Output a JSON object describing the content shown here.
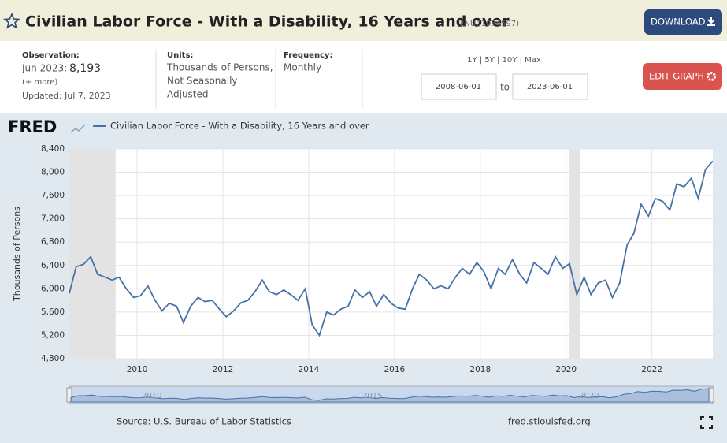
{
  "header": {
    "title": "Civilian Labor Force - With a Disability, 16 Years and over",
    "series_id": "(LNU01074597)",
    "download": "DOWNLOAD"
  },
  "info": {
    "observation_label": "Observation:",
    "observation_date": "Jun 2023:",
    "observation_value": "8,193",
    "more": "(+ more)",
    "updated": "Updated: Jul 7, 2023",
    "units_label": "Units:",
    "units": [
      "Thousands of Persons,",
      "Not Seasonally",
      "Adjusted"
    ],
    "frequency_label": "Frequency:",
    "frequency": "Monthly",
    "ranges": "1Y | 5Y | 10Y | Max",
    "start_date": "2008-06-01",
    "to": "to",
    "end_date": "2023-06-01",
    "edit_graph": "EDIT GRAPH"
  },
  "chart_data": {
    "type": "line",
    "logo": "FRED",
    "y_label": "Thousands of Persons",
    "x": [
      2008.42,
      2008.58,
      2008.75,
      2008.92,
      2009.08,
      2009.25,
      2009.42,
      2009.58,
      2009.75,
      2009.92,
      2010.08,
      2010.25,
      2010.42,
      2010.58,
      2010.75,
      2010.92,
      2011.08,
      2011.25,
      2011.42,
      2011.58,
      2011.75,
      2011.92,
      2012.08,
      2012.25,
      2012.42,
      2012.58,
      2012.75,
      2012.92,
      2013.08,
      2013.25,
      2013.42,
      2013.58,
      2013.75,
      2013.92,
      2014.08,
      2014.25,
      2014.42,
      2014.58,
      2014.75,
      2014.92,
      2015.08,
      2015.25,
      2015.42,
      2015.58,
      2015.75,
      2015.92,
      2016.08,
      2016.25,
      2016.42,
      2016.58,
      2016.75,
      2016.92,
      2017.08,
      2017.25,
      2017.42,
      2017.58,
      2017.75,
      2017.92,
      2018.08,
      2018.25,
      2018.42,
      2018.58,
      2018.75,
      2018.92,
      2019.08,
      2019.25,
      2019.42,
      2019.58,
      2019.75,
      2019.92,
      2020.08,
      2020.25,
      2020.42,
      2020.58,
      2020.75,
      2020.92,
      2021.08,
      2021.25,
      2021.42,
      2021.58,
      2021.75,
      2021.92,
      2022.08,
      2022.25,
      2022.42,
      2022.58,
      2022.75,
      2022.92,
      2023.08,
      2023.25,
      2023.42
    ],
    "series": [
      {
        "name": "Civilian Labor Force - With a Disability, 16 Years and over",
        "color": "#4572a7",
        "values": [
          5920,
          6380,
          6420,
          6550,
          6250,
          6200,
          6150,
          6200,
          6000,
          5850,
          5880,
          6050,
          5800,
          5620,
          5750,
          5700,
          5420,
          5700,
          5850,
          5780,
          5800,
          5650,
          5520,
          5620,
          5760,
          5800,
          5950,
          6150,
          5950,
          5900,
          5980,
          5900,
          5800,
          6000,
          5380,
          5200,
          5600,
          5550,
          5650,
          5700,
          5980,
          5850,
          5950,
          5700,
          5900,
          5750,
          5670,
          5650,
          6000,
          6250,
          6150,
          6000,
          6050,
          6000,
          6200,
          6350,
          6250,
          6450,
          6300,
          6000,
          6350,
          6250,
          6500,
          6250,
          6100,
          6450,
          6350,
          6250,
          6550,
          6350,
          6430,
          5900,
          6200,
          5900,
          6100,
          6150,
          5850,
          6100,
          6750,
          6950,
          7450,
          7250,
          7550,
          7500,
          7350,
          7800,
          7750,
          7900,
          7550,
          8050,
          8193
        ]
      }
    ],
    "xlim": [
      2008.42,
      2023.42
    ],
    "xticks": [
      2010,
      2012,
      2014,
      2016,
      2018,
      2020,
      2022
    ],
    "ylim": [
      4800,
      8400
    ],
    "yticks": [
      {
        "value": 4800,
        "label": "4,800"
      },
      {
        "value": 5200,
        "label": "5,200"
      },
      {
        "value": 5600,
        "label": "5,600"
      },
      {
        "value": 6000,
        "label": "6,000"
      },
      {
        "value": 6400,
        "label": "6,400"
      },
      {
        "value": 6800,
        "label": "6,800"
      },
      {
        "value": 7200,
        "label": "7,200"
      },
      {
        "value": 7600,
        "label": "7,600"
      },
      {
        "value": 8000,
        "label": "8,000"
      },
      {
        "value": 8400,
        "label": "8,400"
      }
    ],
    "grid": true,
    "shaded_periods": [
      {
        "start": 2007.92,
        "end": 2009.5
      },
      {
        "start": 2020.08,
        "end": 2020.33
      }
    ],
    "nav_labels": [
      "2010",
      "2015",
      "2020"
    ]
  },
  "footer": {
    "source": "Source: U.S. Bureau of Labor Statistics",
    "url": "fred.stlouisfed.org"
  }
}
